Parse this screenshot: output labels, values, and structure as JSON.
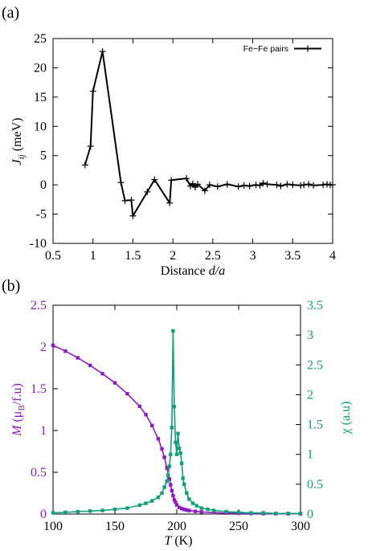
{
  "chart_data": [
    {
      "panel_label": "(a)",
      "type": "line",
      "xlabel_prefix": "Distance ",
      "xlabel_var": "d/a",
      "ylabel_var": "J",
      "ylabel_sub": "ij",
      "ylabel_unit": " (meV)",
      "xlim": [
        0.5,
        4
      ],
      "ylim": [
        -10,
        25
      ],
      "xticks": [
        "0.5",
        "1",
        "1.5",
        "2",
        "2.5",
        "3",
        "3.5",
        "4"
      ],
      "yticks": [
        "-10",
        "-5",
        "0",
        "5",
        "10",
        "15",
        "20",
        "25"
      ],
      "legend_position": "top-right",
      "colors": {
        "series": "#000000"
      },
      "series": [
        {
          "name": "Fe−Fe pairs",
          "x": [
            0.9,
            0.97,
            1.0,
            1.12,
            1.35,
            1.4,
            1.48,
            1.5,
            1.68,
            1.77,
            1.96,
            1.98,
            2.17,
            2.22,
            2.25,
            2.28,
            2.31,
            2.4,
            2.46,
            2.56,
            2.68,
            2.82,
            2.89,
            2.96,
            3.04,
            3.09,
            3.13,
            3.18,
            3.3,
            3.35,
            3.43,
            3.5,
            3.6,
            3.64,
            3.7,
            3.76,
            3.88,
            3.93,
            3.97,
            4.0
          ],
          "y": [
            3.4,
            6.6,
            16.0,
            22.8,
            0.4,
            -2.7,
            -2.6,
            -5.3,
            -1.2,
            0.9,
            -3.1,
            0.8,
            1.1,
            -0.2,
            0.2,
            -0.4,
            0.1,
            -1.0,
            0.0,
            -0.3,
            0.1,
            -0.3,
            -0.1,
            -0.2,
            0.0,
            -0.1,
            0.3,
            0.1,
            0.0,
            -0.2,
            0.1,
            0.0,
            -0.1,
            0.0,
            0.1,
            -0.1,
            0.0,
            0.1,
            0.0,
            0.0
          ]
        }
      ]
    },
    {
      "panel_label": "(b)",
      "type": "line",
      "xlabel_var": "T",
      "xlabel_unit": " (K)",
      "ylabel_left_var": "M",
      "ylabel_left_mu": "μ",
      "ylabel_left_sub": "B",
      "ylabel_left_rest": "/f.u)",
      "ylabel_left_open": " (",
      "ylabel_right": "χ (a.u)",
      "xlim": [
        100,
        300
      ],
      "ylim_left": [
        0,
        2.5
      ],
      "ylim_right": [
        0,
        3.5
      ],
      "xticks": [
        "100",
        "150",
        "200",
        "250",
        "300"
      ],
      "yticks_left": [
        "0",
        "0.5",
        "1",
        "1.5",
        "2",
        "2.5"
      ],
      "yticks_right": [
        "0",
        "0.5",
        "1",
        "1.5",
        "2",
        "2.5",
        "3",
        "3.5"
      ],
      "colors": {
        "M": "#8e1cc6",
        "chi": "#12a07a"
      },
      "series": [
        {
          "axis": "left",
          "x": [
            100,
            110,
            120,
            130,
            140,
            150,
            160,
            170,
            175,
            180,
            185,
            188,
            190,
            192,
            194,
            195,
            196,
            197,
            198,
            199,
            200,
            202,
            204,
            206,
            208,
            210,
            215,
            220,
            230,
            240,
            250,
            260,
            270,
            280,
            290,
            300
          ],
          "y": [
            2.02,
            1.95,
            1.87,
            1.78,
            1.68,
            1.57,
            1.44,
            1.29,
            1.19,
            1.06,
            0.9,
            0.78,
            0.68,
            0.55,
            0.42,
            0.35,
            0.28,
            0.22,
            0.17,
            0.14,
            0.11,
            0.08,
            0.065,
            0.055,
            0.048,
            0.042,
            0.032,
            0.025,
            0.017,
            0.012,
            0.009,
            0.007,
            0.005,
            0.004,
            0.003,
            0.003
          ]
        },
        {
          "axis": "right",
          "x": [
            100,
            110,
            120,
            130,
            140,
            150,
            160,
            170,
            175,
            180,
            185,
            188,
            190,
            192,
            193,
            194,
            195,
            196,
            197,
            198,
            199,
            200,
            201,
            202,
            203,
            204,
            205,
            206,
            208,
            210,
            213,
            216,
            220,
            225,
            230,
            240,
            250,
            260,
            270,
            280,
            290,
            300
          ],
          "y": [
            0.02,
            0.03,
            0.04,
            0.05,
            0.06,
            0.08,
            0.1,
            0.15,
            0.18,
            0.22,
            0.28,
            0.35,
            0.45,
            0.55,
            0.65,
            0.8,
            1.0,
            1.45,
            3.07,
            1.8,
            1.2,
            1.0,
            1.35,
            1.1,
            1.02,
            0.85,
            0.6,
            0.5,
            0.35,
            0.25,
            0.18,
            0.14,
            0.1,
            0.08,
            0.06,
            0.04,
            0.03,
            0.02,
            0.02,
            0.01,
            0.01,
            0.01
          ]
        }
      ]
    }
  ]
}
